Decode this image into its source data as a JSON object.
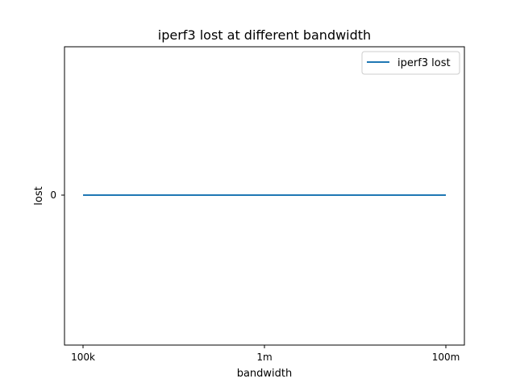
{
  "chart_data": {
    "type": "line",
    "title": "iperf3 lost at different bandwidth",
    "xlabel": "bandwidth",
    "ylabel": "lost",
    "categories": [
      "100k",
      "1m",
      "100m"
    ],
    "series": [
      {
        "name": "iperf3 lost",
        "values": [
          0,
          0,
          0
        ],
        "color": "#1f77b4"
      }
    ],
    "y_ticks": [
      "0"
    ],
    "grid": false,
    "legend": "top-right"
  }
}
